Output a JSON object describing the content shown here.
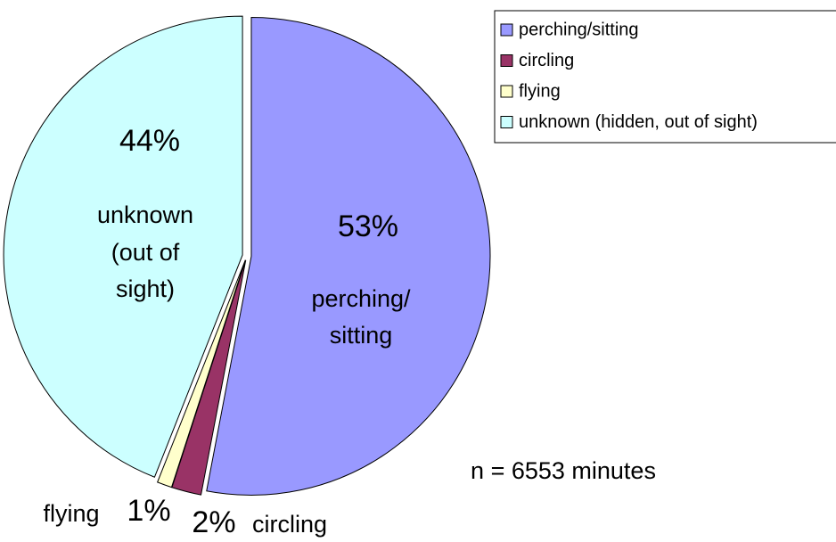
{
  "chart_data": {
    "type": "pie",
    "categories": [
      "perching/sitting",
      "circling",
      "flying",
      "unknown (hidden, out of sight)"
    ],
    "values": [
      53,
      2,
      1,
      44
    ],
    "value_labels": [
      "53%",
      "2%",
      "1%",
      "44%"
    ],
    "slice_labels": [
      [
        "perching/",
        "sitting"
      ],
      [
        "circling"
      ],
      [
        "flying"
      ],
      [
        "unknown",
        "(out of",
        "sight)"
      ]
    ],
    "colors": [
      "#9999ff",
      "#993366",
      "#ffffcc",
      "#ccffff"
    ],
    "annotation": "n = 6553 minutes",
    "legend": "top-right"
  }
}
